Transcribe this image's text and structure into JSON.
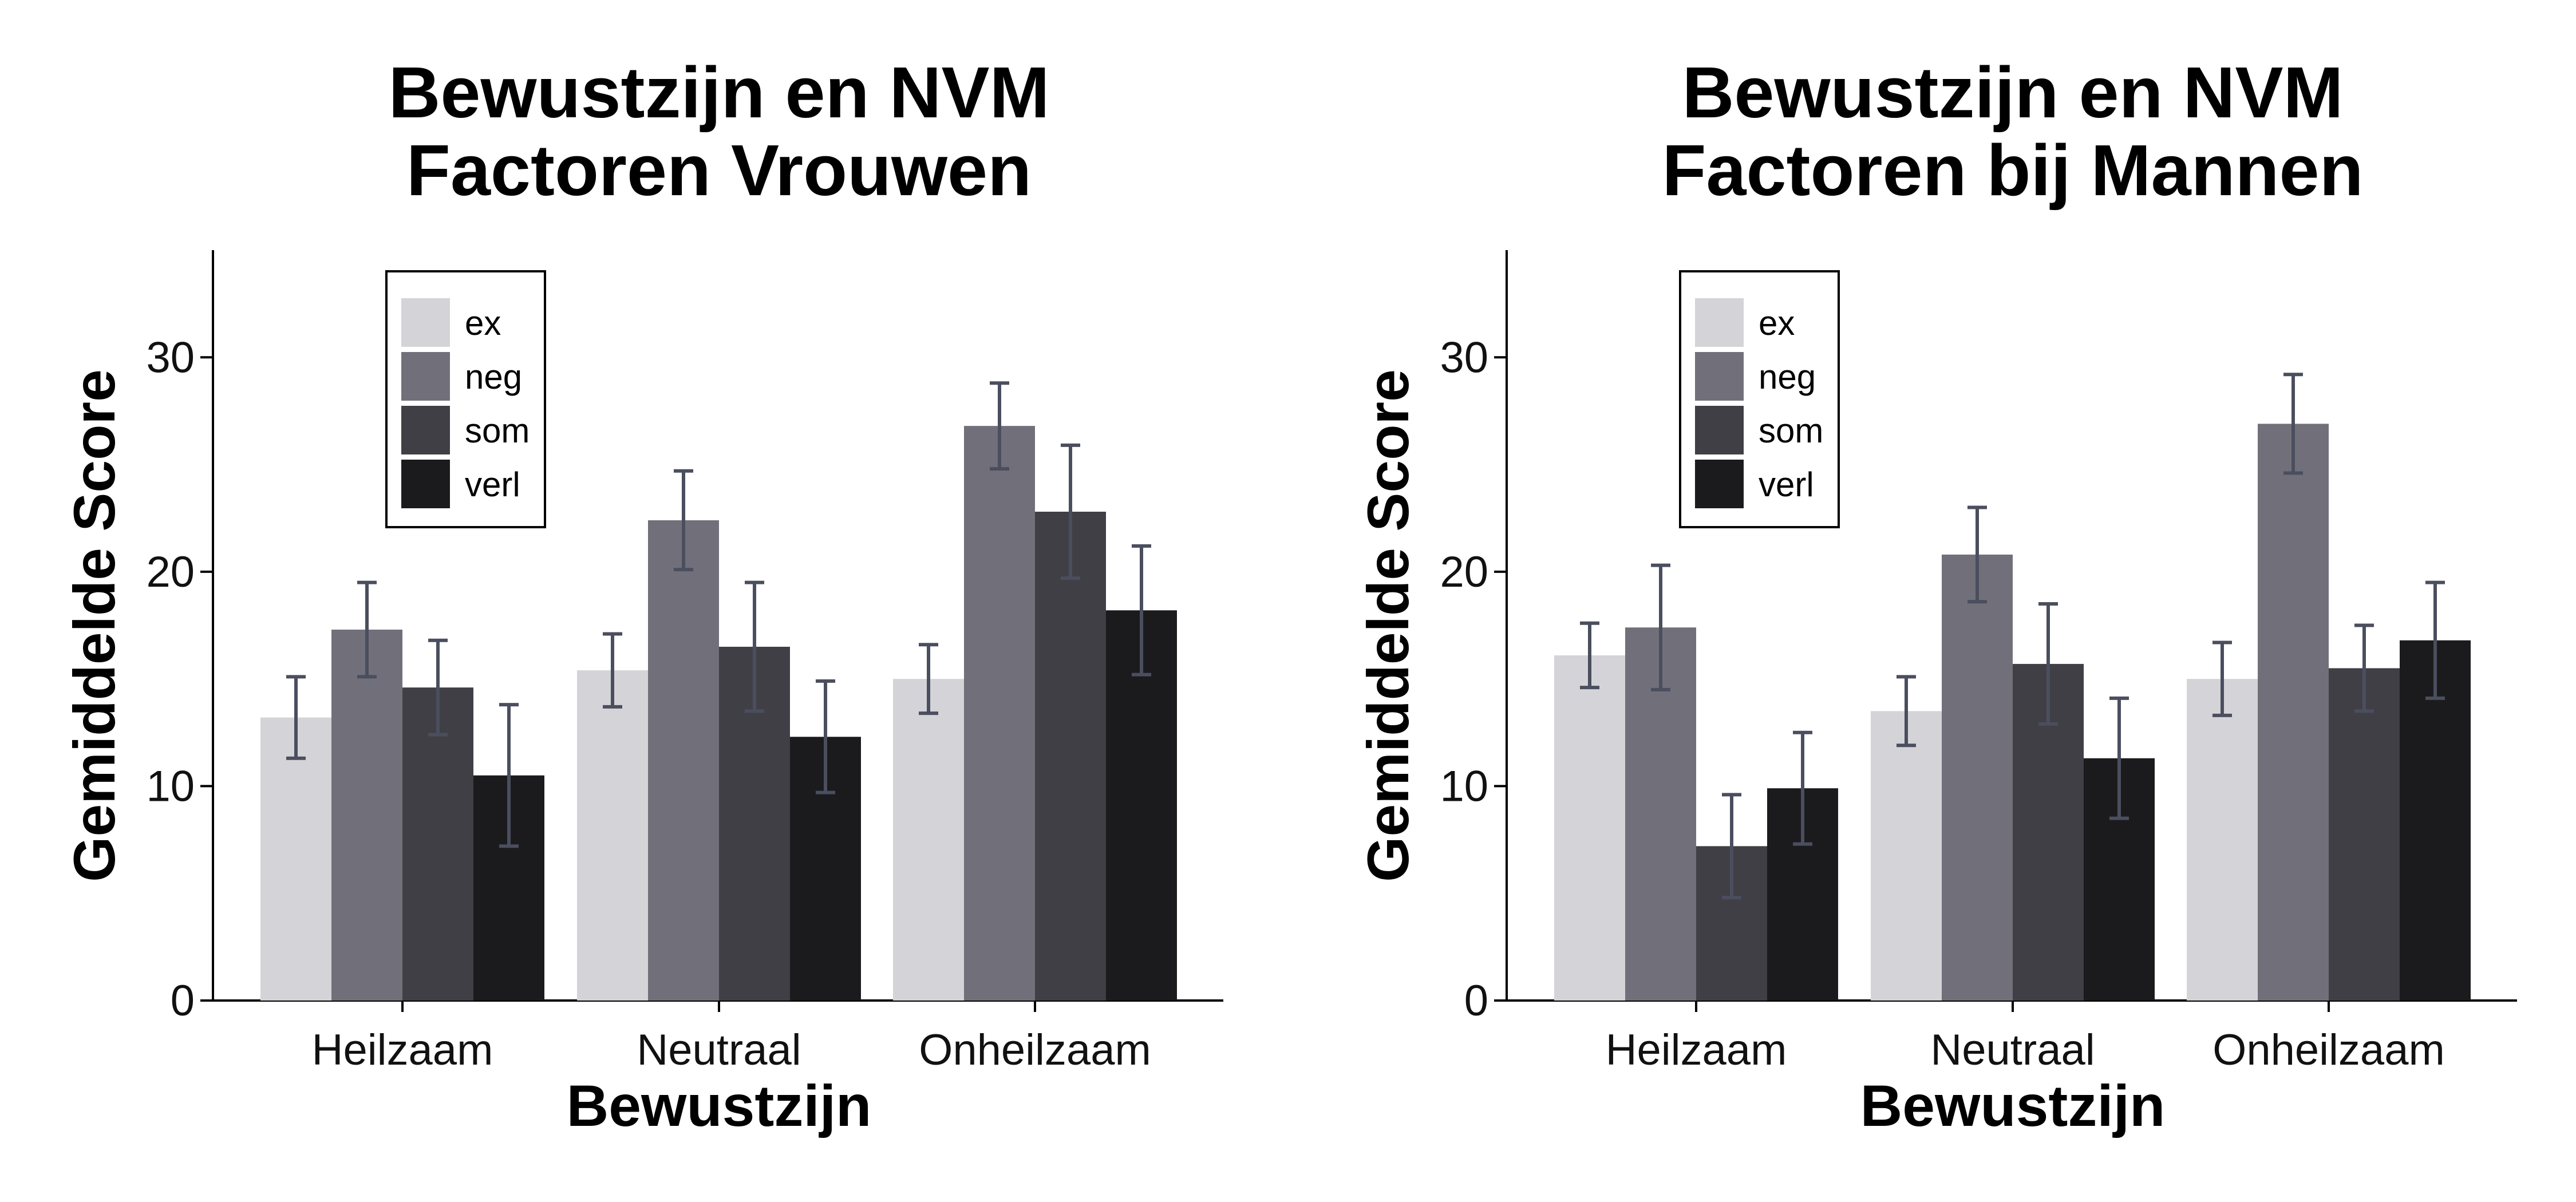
{
  "chart_data": [
    {
      "type": "bar",
      "title": [
        "Bewustzijn en NVM",
        "Factoren Vrouwen"
      ],
      "xlabel": "Bewustzijn",
      "ylabel": "Gemiddelde Score",
      "categories": [
        "Heilzaam",
        "Neutraal",
        "Onheilzaam"
      ],
      "ylim": [
        0,
        35
      ],
      "yticks": [
        0,
        10,
        20,
        30
      ],
      "grid": false,
      "legend_position": "top-left",
      "series": [
        {
          "name": "ex",
          "color": "#d4d4d8",
          "values": [
            13.2,
            15.4,
            15.0
          ],
          "errors": [
            1.9,
            1.7,
            1.6
          ]
        },
        {
          "name": "neg",
          "color": "#71707a",
          "values": [
            17.3,
            22.4,
            26.8
          ],
          "errors": [
            2.2,
            2.3,
            2.0
          ]
        },
        {
          "name": "som",
          "color": "#3f3f45",
          "values": [
            14.6,
            16.5,
            22.8
          ],
          "errors": [
            2.2,
            3.0,
            3.1
          ]
        },
        {
          "name": "verl",
          "color": "#1b1b1d",
          "values": [
            10.5,
            12.3,
            18.2
          ],
          "errors": [
            3.3,
            2.6,
            3.0
          ]
        }
      ],
      "errorbar_color": "#4a4e5e"
    },
    {
      "type": "bar",
      "title": [
        "Bewustzijn en NVM",
        "Factoren bij Mannen"
      ],
      "xlabel": "Bewustzijn",
      "ylabel": "Gemiddelde Score",
      "categories": [
        "Heilzaam",
        "Neutraal",
        "Onheilzaam"
      ],
      "ylim": [
        0,
        35
      ],
      "yticks": [
        0,
        10,
        20,
        30
      ],
      "grid": false,
      "legend_position": "top-left",
      "series": [
        {
          "name": "ex",
          "color": "#d4d4d8",
          "values": [
            16.1,
            13.5,
            15.0
          ],
          "errors": [
            1.5,
            1.6,
            1.7
          ]
        },
        {
          "name": "neg",
          "color": "#71707a",
          "values": [
            17.4,
            20.8,
            26.9
          ],
          "errors": [
            2.9,
            2.2,
            2.3
          ]
        },
        {
          "name": "som",
          "color": "#3f3f45",
          "values": [
            7.2,
            15.7,
            15.5
          ],
          "errors": [
            2.4,
            2.8,
            2.0
          ]
        },
        {
          "name": "verl",
          "color": "#1b1b1d",
          "values": [
            9.9,
            11.3,
            16.8
          ],
          "errors": [
            2.6,
            2.8,
            2.7
          ]
        }
      ],
      "errorbar_color": "#4a4e5e"
    }
  ]
}
